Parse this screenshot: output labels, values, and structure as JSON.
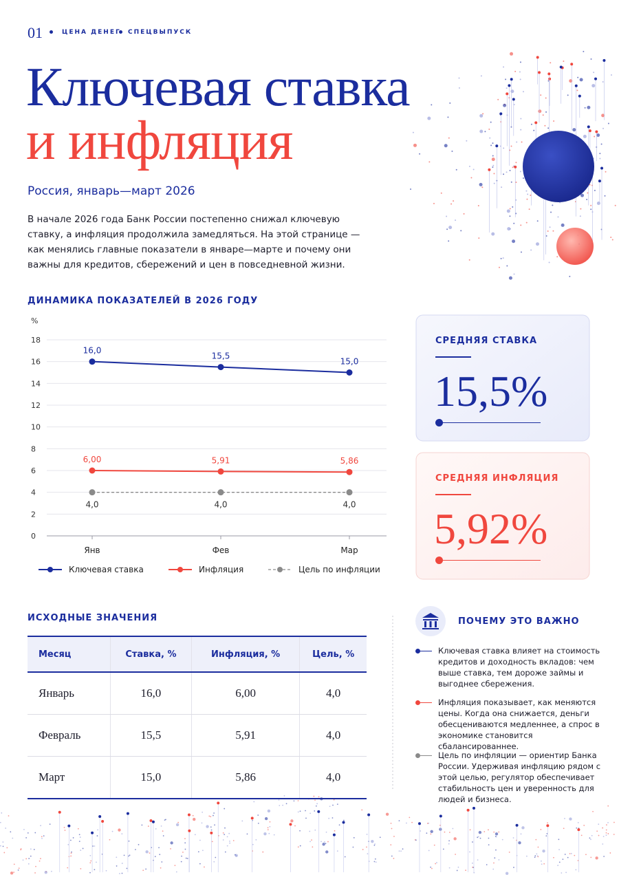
{
  "header": {
    "issue": "01",
    "rubric": "ЦЕНА ДЕНЕГ",
    "edition": "СПЕЦВЫПУСК"
  },
  "title": {
    "line1": "Ключевая ставка",
    "line2": "и инфляция"
  },
  "subtitle": "Россия, январь—март 2026",
  "intro": "В начале 2026 года Банк России постепенно снижал ключевую ставку, а инфляция продолжила замедляться. На этой странице — как менялись главные показатели в январе—марте и почему они важны для кредитов, сбережений и цен в повседневной жизни.",
  "chart_data": {
    "type": "line",
    "title": "ДИНАМИКА ПОКАЗАТЕЛЕЙ В 2026 ГОДУ",
    "y_label": "%",
    "categories": [
      "Янв",
      "Фев",
      "Мар"
    ],
    "series": [
      {
        "name": "Ключевая ставка",
        "color": "#1b2d9e",
        "values": [
          16.0,
          15.5,
          15.0
        ],
        "value_labels": [
          "16,0",
          "15,5",
          "15,0"
        ]
      },
      {
        "name": "Инфляция",
        "color": "#f0473e",
        "values": [
          6.0,
          5.91,
          5.86
        ],
        "value_labels": [
          "6,00",
          "5,91",
          "5,86"
        ]
      },
      {
        "name": "Цель по инфляции",
        "color": "#8a8a8a",
        "dashed": true,
        "values": [
          4.0,
          4.0,
          4.0
        ],
        "value_labels": [
          "4,0",
          "4,0",
          "4,0"
        ]
      }
    ],
    "ylim": [
      0,
      18
    ],
    "yticks": [
      0,
      2,
      4,
      6,
      8,
      10,
      12,
      14,
      16,
      18
    ],
    "grid": true
  },
  "cards": [
    {
      "label": "СРЕДНЯЯ СТАВКА",
      "value": "15,5%"
    },
    {
      "label": "СРЕДНЯЯ ИНФЛЯЦИЯ",
      "value": "5,92%"
    }
  ],
  "table": {
    "title": "ИСХОДНЫЕ ЗНАЧЕНИЯ",
    "columns": [
      "Месяц",
      "Ставка, %",
      "Инфляция, %",
      "Цель, %"
    ],
    "rows": [
      [
        "Январь",
        "16,0",
        "6,00",
        "4,0"
      ],
      [
        "Февраль",
        "15,5",
        "5,91",
        "4,0"
      ],
      [
        "Март",
        "15,0",
        "5,86",
        "4,0"
      ]
    ]
  },
  "why": {
    "title": "ПОЧЕМУ ЭТО ВАЖНО",
    "items": [
      "Ключевая ставка влияет на стоимость кредитов и доходность вкладов: чем выше ставка, тем дороже займы и выгоднее сбережения.",
      "Инфляция показывает, как меняются цены. Когда она снижается, деньги обесцениваются медленнее, а спрос в экономике становится сбалансированнее.",
      "Цель по инфляции — ориентир Банка России. Удерживая инфляцию рядом с этой целью, регулятор обеспечивает стабильность цен и уверенность для людей и бизнеса."
    ]
  }
}
